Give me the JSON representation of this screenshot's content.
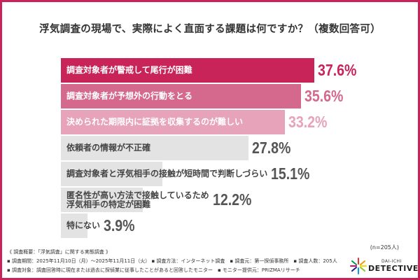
{
  "chart_data": {
    "type": "bar",
    "orientation": "horizontal",
    "title": "浮気調査の現場で、実際によく直面する課題は何ですか？（複数回答可）",
    "categories": [
      "調査対象者が警戒して尾行が困難",
      "調査対象者が予想外の行動をとる",
      "決められた期限内に証拠を収集するのが難しい",
      "依頼者の情報が不正確",
      "調査対象者と浮気相手の接触が短時間で判断しづらい",
      "匿名性が高い方法で接触しているため\n浮気相手の特定が困難",
      "特にない"
    ],
    "values": [
      37.6,
      35.6,
      33.2,
      27.8,
      15.1,
      12.2,
      3.9
    ],
    "value_labels": [
      "37.6%",
      "35.6%",
      "33.2%",
      "27.8%",
      "15.1%",
      "12.2%",
      "3.9%"
    ],
    "bar_colors": [
      "#c8245a",
      "#d4688d",
      "#e7a3ba",
      "#e3e3e3",
      "#e3e3e3",
      "#e3e3e3",
      "#e3e3e3"
    ],
    "label_colors": [
      "#ffffff",
      "#ffffff",
      "#ffffff",
      "#444444",
      "#444444",
      "#444444",
      "#444444"
    ],
    "value_colors": [
      "#c8245a",
      "#d4688d",
      "#e7a3ba",
      "#555555",
      "#555555",
      "#555555",
      "#555555"
    ],
    "sample": "(n=205人)"
  },
  "footer": {
    "line1": "《 調査概要：「浮気調査」に関する実態調査 》",
    "line2": "▪ 調査期間：2025年11月10日（月）～2025年11月11日（火） ▪ 調査方法：インターネット調査　▪ 調査元：第一探偵事務所　▪ 調査人数：205人",
    "line3": "▪ 調査対象：調査回答時に現在または過去に探偵業に従事したことがあると回答したモニター　▪ モニター提供元：PRIZMAリサーチ"
  },
  "logo": {
    "small": "DAI-ICHI",
    "big": "DETECTIVE"
  }
}
